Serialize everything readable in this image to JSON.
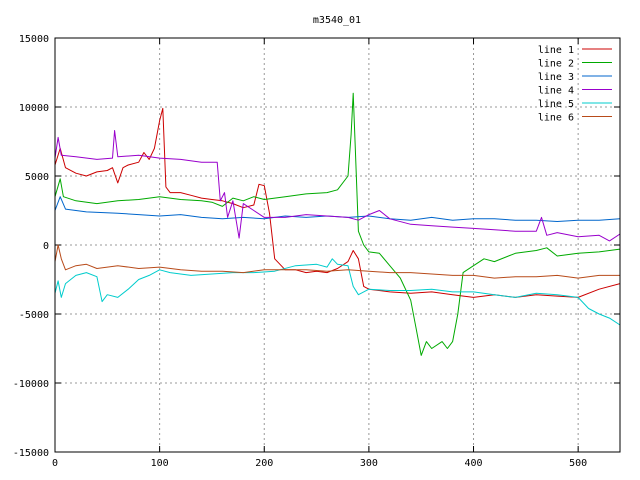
{
  "chart_data": {
    "type": "line",
    "title": "m3540_01",
    "xlabel": "",
    "ylabel": "",
    "xlim": [
      0,
      540
    ],
    "ylim": [
      -15000,
      15000
    ],
    "grid": true,
    "legend_position": "top-right",
    "x_ticks": [
      0,
      100,
      200,
      300,
      400,
      500
    ],
    "y_ticks": [
      -15000,
      -10000,
      -5000,
      0,
      5000,
      10000,
      15000
    ],
    "series": [
      {
        "name": "line 1",
        "color": "#cc0000",
        "points": [
          [
            0,
            5800
          ],
          [
            5,
            7000
          ],
          [
            10,
            5600
          ],
          [
            20,
            5200
          ],
          [
            30,
            5000
          ],
          [
            40,
            5300
          ],
          [
            50,
            5400
          ],
          [
            55,
            5600
          ],
          [
            60,
            4500
          ],
          [
            65,
            5600
          ],
          [
            70,
            5800
          ],
          [
            80,
            6000
          ],
          [
            85,
            6700
          ],
          [
            90,
            6200
          ],
          [
            95,
            7000
          ],
          [
            100,
            9000
          ],
          [
            103,
            9900
          ],
          [
            106,
            4200
          ],
          [
            110,
            3800
          ],
          [
            120,
            3800
          ],
          [
            130,
            3600
          ],
          [
            140,
            3400
          ],
          [
            150,
            3300
          ],
          [
            160,
            3200
          ],
          [
            170,
            3000
          ],
          [
            180,
            2700
          ],
          [
            190,
            2900
          ],
          [
            195,
            4400
          ],
          [
            200,
            4300
          ],
          [
            205,
            2300
          ],
          [
            210,
            -1000
          ],
          [
            220,
            -1800
          ],
          [
            230,
            -1800
          ],
          [
            240,
            -2000
          ],
          [
            250,
            -1900
          ],
          [
            260,
            -2000
          ],
          [
            270,
            -1700
          ],
          [
            280,
            -1200
          ],
          [
            285,
            -400
          ],
          [
            290,
            -1000
          ],
          [
            295,
            -3000
          ],
          [
            300,
            -3200
          ],
          [
            320,
            -3400
          ],
          [
            340,
            -3500
          ],
          [
            360,
            -3400
          ],
          [
            380,
            -3600
          ],
          [
            400,
            -3800
          ],
          [
            420,
            -3600
          ],
          [
            440,
            -3800
          ],
          [
            460,
            -3600
          ],
          [
            480,
            -3700
          ],
          [
            500,
            -3800
          ],
          [
            520,
            -3200
          ],
          [
            540,
            -2800
          ]
        ]
      },
      {
        "name": "line 2",
        "color": "#00aa00",
        "points": [
          [
            0,
            3500
          ],
          [
            5,
            4800
          ],
          [
            8,
            3500
          ],
          [
            20,
            3200
          ],
          [
            40,
            3000
          ],
          [
            60,
            3200
          ],
          [
            80,
            3300
          ],
          [
            100,
            3500
          ],
          [
            120,
            3300
          ],
          [
            140,
            3200
          ],
          [
            150,
            3100
          ],
          [
            160,
            2800
          ],
          [
            170,
            3400
          ],
          [
            180,
            3200
          ],
          [
            190,
            3500
          ],
          [
            200,
            3300
          ],
          [
            220,
            3500
          ],
          [
            240,
            3700
          ],
          [
            260,
            3800
          ],
          [
            270,
            4000
          ],
          [
            280,
            5000
          ],
          [
            283,
            8000
          ],
          [
            285,
            11000
          ],
          [
            287,
            7000
          ],
          [
            290,
            1000
          ],
          [
            295,
            0
          ],
          [
            300,
            -500
          ],
          [
            310,
            -600
          ],
          [
            320,
            -1500
          ],
          [
            330,
            -2400
          ],
          [
            340,
            -4000
          ],
          [
            345,
            -6000
          ],
          [
            350,
            -8000
          ],
          [
            355,
            -7000
          ],
          [
            360,
            -7500
          ],
          [
            370,
            -7000
          ],
          [
            375,
            -7500
          ],
          [
            380,
            -7000
          ],
          [
            385,
            -5000
          ],
          [
            390,
            -2000
          ],
          [
            400,
            -1500
          ],
          [
            410,
            -1000
          ],
          [
            420,
            -1200
          ],
          [
            440,
            -600
          ],
          [
            460,
            -400
          ],
          [
            470,
            -200
          ],
          [
            480,
            -800
          ],
          [
            500,
            -600
          ],
          [
            520,
            -500
          ],
          [
            540,
            -300
          ]
        ]
      },
      {
        "name": "line 3",
        "color": "#0066cc",
        "points": [
          [
            0,
            2500
          ],
          [
            5,
            3500
          ],
          [
            10,
            2600
          ],
          [
            30,
            2400
          ],
          [
            60,
            2300
          ],
          [
            80,
            2200
          ],
          [
            100,
            2100
          ],
          [
            120,
            2200
          ],
          [
            140,
            2000
          ],
          [
            160,
            1900
          ],
          [
            180,
            2000
          ],
          [
            200,
            1900
          ],
          [
            220,
            2100
          ],
          [
            240,
            2000
          ],
          [
            260,
            2100
          ],
          [
            280,
            2000
          ],
          [
            300,
            2100
          ],
          [
            320,
            1900
          ],
          [
            340,
            1800
          ],
          [
            360,
            2000
          ],
          [
            380,
            1800
          ],
          [
            400,
            1900
          ],
          [
            420,
            1900
          ],
          [
            440,
            1800
          ],
          [
            460,
            1800
          ],
          [
            480,
            1700
          ],
          [
            500,
            1800
          ],
          [
            520,
            1800
          ],
          [
            540,
            1900
          ]
        ]
      },
      {
        "name": "line 4",
        "color": "#9900cc",
        "points": [
          [
            0,
            6300
          ],
          [
            3,
            7800
          ],
          [
            6,
            6500
          ],
          [
            20,
            6400
          ],
          [
            40,
            6200
          ],
          [
            55,
            6300
          ],
          [
            57,
            8300
          ],
          [
            60,
            6400
          ],
          [
            80,
            6500
          ],
          [
            100,
            6300
          ],
          [
            120,
            6200
          ],
          [
            140,
            6000
          ],
          [
            155,
            6000
          ],
          [
            158,
            3200
          ],
          [
            162,
            3800
          ],
          [
            165,
            2000
          ],
          [
            170,
            3200
          ],
          [
            176,
            500
          ],
          [
            180,
            3000
          ],
          [
            190,
            2500
          ],
          [
            200,
            2000
          ],
          [
            220,
            2000
          ],
          [
            240,
            2200
          ],
          [
            260,
            2100
          ],
          [
            280,
            2000
          ],
          [
            290,
            1800
          ],
          [
            300,
            2200
          ],
          [
            310,
            2500
          ],
          [
            320,
            1900
          ],
          [
            340,
            1500
          ],
          [
            360,
            1400
          ],
          [
            380,
            1300
          ],
          [
            400,
            1200
          ],
          [
            420,
            1100
          ],
          [
            440,
            1000
          ],
          [
            460,
            1000
          ],
          [
            465,
            2000
          ],
          [
            470,
            700
          ],
          [
            480,
            900
          ],
          [
            500,
            600
          ],
          [
            520,
            700
          ],
          [
            530,
            300
          ],
          [
            540,
            800
          ]
        ]
      },
      {
        "name": "line 5",
        "color": "#00cccc",
        "points": [
          [
            0,
            -3500
          ],
          [
            3,
            -2600
          ],
          [
            6,
            -3800
          ],
          [
            10,
            -2800
          ],
          [
            20,
            -2200
          ],
          [
            30,
            -2000
          ],
          [
            40,
            -2300
          ],
          [
            45,
            -4100
          ],
          [
            50,
            -3600
          ],
          [
            60,
            -3800
          ],
          [
            70,
            -3200
          ],
          [
            80,
            -2500
          ],
          [
            90,
            -2200
          ],
          [
            100,
            -1800
          ],
          [
            110,
            -2000
          ],
          [
            130,
            -2200
          ],
          [
            150,
            -2100
          ],
          [
            170,
            -2000
          ],
          [
            190,
            -2000
          ],
          [
            210,
            -1900
          ],
          [
            230,
            -1500
          ],
          [
            250,
            -1400
          ],
          [
            260,
            -1600
          ],
          [
            265,
            -1000
          ],
          [
            270,
            -1400
          ],
          [
            280,
            -1500
          ],
          [
            285,
            -3000
          ],
          [
            290,
            -3600
          ],
          [
            300,
            -3200
          ],
          [
            320,
            -3300
          ],
          [
            340,
            -3300
          ],
          [
            360,
            -3200
          ],
          [
            380,
            -3400
          ],
          [
            400,
            -3400
          ],
          [
            420,
            -3600
          ],
          [
            440,
            -3800
          ],
          [
            460,
            -3500
          ],
          [
            480,
            -3600
          ],
          [
            500,
            -3800
          ],
          [
            510,
            -4600
          ],
          [
            520,
            -5000
          ],
          [
            530,
            -5300
          ],
          [
            540,
            -5800
          ]
        ]
      },
      {
        "name": "line 6",
        "color": "#b84b1a",
        "points": [
          [
            0,
            -1200
          ],
          [
            3,
            0
          ],
          [
            6,
            -1000
          ],
          [
            10,
            -1800
          ],
          [
            20,
            -1500
          ],
          [
            30,
            -1400
          ],
          [
            40,
            -1700
          ],
          [
            60,
            -1500
          ],
          [
            80,
            -1700
          ],
          [
            100,
            -1600
          ],
          [
            120,
            -1800
          ],
          [
            140,
            -1900
          ],
          [
            160,
            -1900
          ],
          [
            180,
            -2000
          ],
          [
            200,
            -1800
          ],
          [
            220,
            -1800
          ],
          [
            240,
            -1800
          ],
          [
            260,
            -1900
          ],
          [
            280,
            -1800
          ],
          [
            300,
            -1900
          ],
          [
            320,
            -2000
          ],
          [
            340,
            -2000
          ],
          [
            360,
            -2100
          ],
          [
            380,
            -2200
          ],
          [
            400,
            -2200
          ],
          [
            420,
            -2400
          ],
          [
            440,
            -2300
          ],
          [
            460,
            -2300
          ],
          [
            480,
            -2200
          ],
          [
            500,
            -2400
          ],
          [
            520,
            -2200
          ],
          [
            540,
            -2200
          ]
        ]
      }
    ]
  }
}
